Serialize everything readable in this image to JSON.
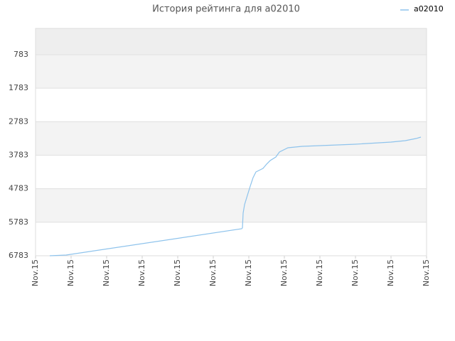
{
  "chart_data": {
    "type": "line",
    "title": "История рейтинга для a02010",
    "x": [
      0.4,
      0.86,
      5.8,
      5.82,
      5.84,
      5.88,
      5.96,
      6.04,
      6.12,
      6.2,
      6.4,
      6.5,
      6.6,
      6.76,
      6.86,
      7.1,
      7.5,
      8.0,
      9.0,
      10.0,
      10.4,
      10.7,
      10.84
    ],
    "series": [
      {
        "name": "a02010",
        "color": "#8ec3ec",
        "values": [
          6783,
          6762,
          5977,
          5950,
          5511,
          5257,
          4981,
          4706,
          4451,
          4282,
          4176,
          4049,
          3943,
          3837,
          3688,
          3561,
          3519,
          3497,
          3455,
          3391,
          3349,
          3286,
          3243
        ]
      }
    ],
    "xlim": [
      0,
      11
    ],
    "xticks": [
      {
        "value": 0,
        "label": "Nov.15"
      },
      {
        "value": 1,
        "label": "Nov.15"
      },
      {
        "value": 2,
        "label": "Nov.15"
      },
      {
        "value": 3,
        "label": "Nov.15"
      },
      {
        "value": 4,
        "label": "Nov.15"
      },
      {
        "value": 5,
        "label": "Nov.15"
      },
      {
        "value": 6,
        "label": "Nov.15"
      },
      {
        "value": 7,
        "label": "Nov.15"
      },
      {
        "value": 8,
        "label": "Nov.15"
      },
      {
        "value": 9,
        "label": "Nov.15"
      },
      {
        "value": 10,
        "label": "Nov.15"
      },
      {
        "value": 11,
        "label": "Nov.15"
      }
    ],
    "ylim": [
      6783,
      0
    ],
    "y_inverted": true,
    "yticks": [
      783,
      1783,
      2783,
      3783,
      4783,
      5783,
      6783
    ],
    "grid": true,
    "legend": "top-right"
  }
}
